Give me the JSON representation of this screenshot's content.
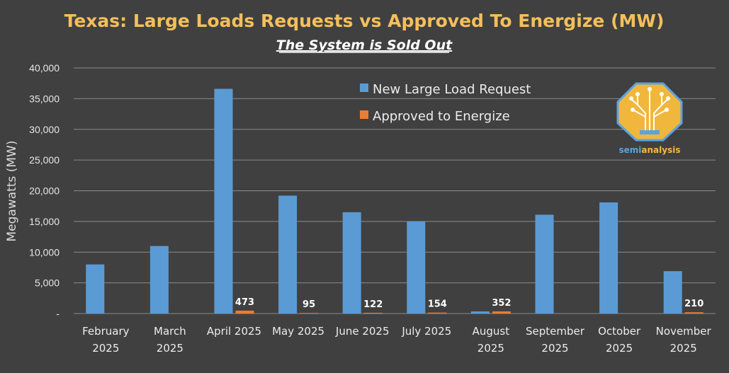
{
  "chart_data": {
    "type": "bar",
    "title": "Texas: Large Loads Requests vs Approved To Energize (MW)",
    "subtitle": "The System is Sold Out",
    "ylabel": "Megawatts (MW)",
    "xlabel": "",
    "ylim": [
      0,
      40000
    ],
    "yticks": [
      0,
      5000,
      10000,
      15000,
      20000,
      25000,
      30000,
      35000,
      40000
    ],
    "ytick_labels": [
      "-",
      "5,000",
      "10,000",
      "15,000",
      "20,000",
      "25,000",
      "30,000",
      "35,000",
      "40,000"
    ],
    "grid": true,
    "legend_position": "top-center",
    "categories": [
      [
        "February",
        "2025"
      ],
      [
        "March",
        "2025"
      ],
      [
        "April 2025"
      ],
      [
        "May 2025"
      ],
      [
        "June 2025"
      ],
      [
        "July 2025"
      ],
      [
        "August",
        "2025"
      ],
      [
        "September",
        "2025"
      ],
      [
        "October",
        "2025"
      ],
      [
        "November",
        "2025"
      ]
    ],
    "series": [
      {
        "name": "New Large Load Request",
        "color": "#5b9bd5",
        "values": [
          8000,
          11000,
          36600,
          19200,
          16500,
          15000,
          352,
          16100,
          18100,
          6900
        ],
        "labels": []
      },
      {
        "name": "Approved to Energize",
        "color": "#ed7d31",
        "values": [
          0,
          0,
          473,
          95,
          122,
          154,
          352,
          0,
          0,
          210
        ],
        "labels": [
          "",
          "",
          "473",
          "95",
          "122",
          "154",
          "352",
          "",
          "",
          "210"
        ]
      }
    ]
  },
  "logo": {
    "icon": "tree-circuit-icon",
    "text_part1": "semi",
    "text_part2": "analysis",
    "color_part1": "#5ba3e0",
    "color_part2": "#f5b942"
  },
  "colors": {
    "background": "#404040",
    "title": "#f5bf5a",
    "grid": "#8a8a8a"
  }
}
